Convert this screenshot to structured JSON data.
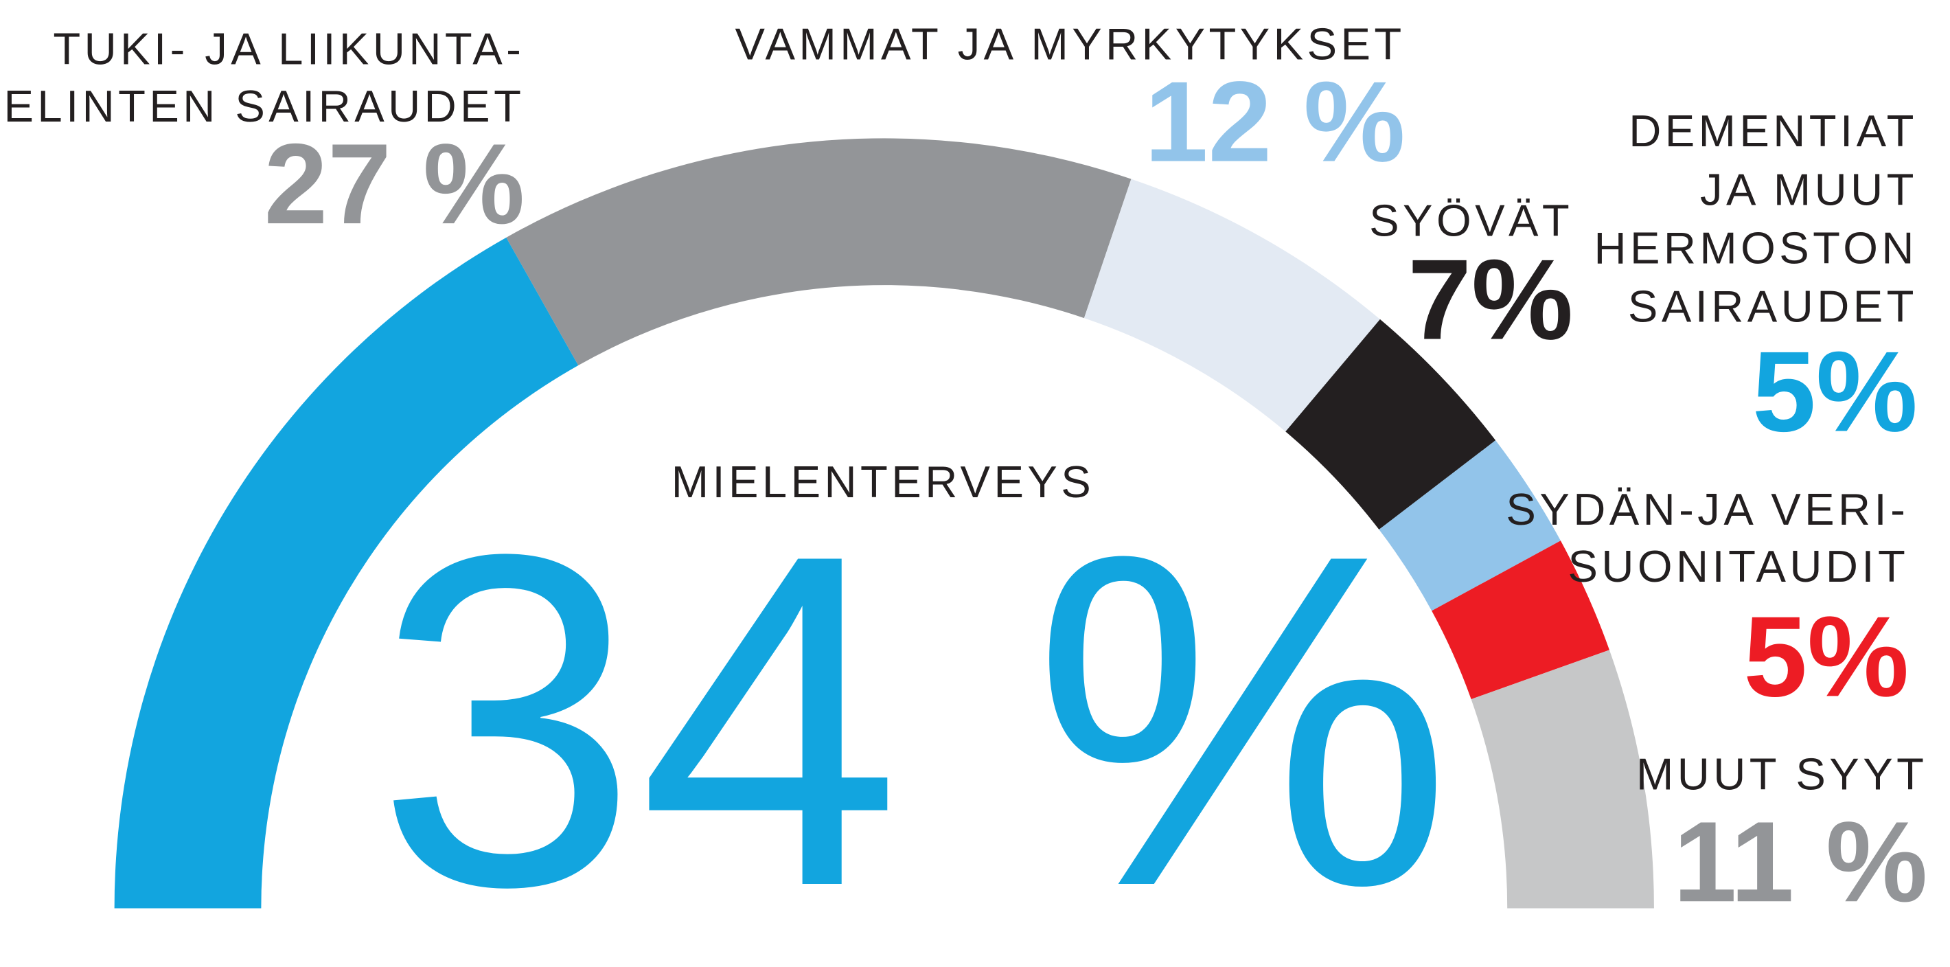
{
  "chart_data": {
    "type": "half-donut",
    "categories": [
      [
        "MIELENTERVEYS"
      ],
      [
        "TUKI- JA LIIKUNTA-",
        "ELINTEN SAIRAUDET"
      ],
      [
        "VAMMAT JA MYRKYTYKSET"
      ],
      [
        "SYÖVÄT"
      ],
      [
        "DEMENTIAT",
        "JA MUUT",
        "HERMOSTON",
        "SAIRAUDET"
      ],
      [
        "SYDÄN-JA VERI-",
        "SUONITAUDIT"
      ],
      [
        "MUUT SYYT"
      ]
    ],
    "values": [
      34,
      27,
      12,
      7,
      5,
      5,
      11
    ],
    "value_labels": [
      "34 %",
      "27 %",
      "12 %",
      "7%",
      "5%",
      "5%",
      "11 %"
    ],
    "colors": [
      "#12a5df",
      "#939598",
      "#e3eaf3",
      "#231f20",
      "#92c4ea",
      "#ed1c24",
      "#c6c7c8"
    ],
    "label_colors": [
      "#12a5df",
      "#939598",
      "#92c4ea",
      "#231f20",
      "#12a5df",
      "#ed1c24",
      "#939598"
    ]
  }
}
